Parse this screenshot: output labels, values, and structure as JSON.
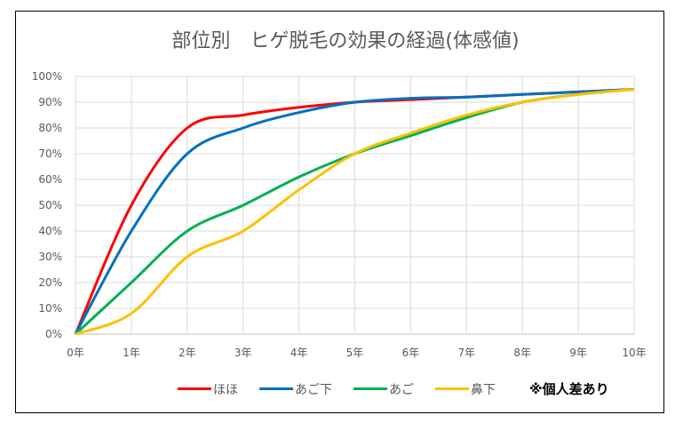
{
  "chart_data": {
    "type": "line",
    "title": "部位別　ヒゲ脱毛の効果の経過(体感値)",
    "x": [
      0,
      1,
      2,
      3,
      4,
      5,
      6,
      7,
      8,
      9,
      10
    ],
    "x_tick_labels": [
      "0年",
      "1年",
      "2年",
      "3年",
      "4年",
      "5年",
      "6年",
      "7年",
      "8年",
      "9年",
      "10年"
    ],
    "y_tick_labels": [
      "0%",
      "10%",
      "20%",
      "30%",
      "40%",
      "50%",
      "60%",
      "70%",
      "80%",
      "90%",
      "100%"
    ],
    "ylim": [
      0,
      100
    ],
    "xlim": [
      0,
      10
    ],
    "grid": true,
    "legend_position": "bottom",
    "series": [
      {
        "name": "ほほ",
        "color": "#ff0000",
        "values": [
          0,
          50,
          80,
          85,
          88,
          90,
          91,
          92,
          93,
          94,
          95
        ]
      },
      {
        "name": "あご下",
        "color": "#0070c0",
        "values": [
          0,
          40,
          70,
          80,
          86,
          90,
          91.5,
          92,
          93,
          94,
          95
        ]
      },
      {
        "name": "あご",
        "color": "#00b050",
        "values": [
          0,
          20,
          40,
          50,
          61,
          70,
          77,
          84,
          90,
          93,
          95
        ]
      },
      {
        "name": "鼻下",
        "color": "#ffc000",
        "values": [
          0,
          8,
          30,
          40,
          56,
          70,
          78,
          85,
          90,
          93,
          95
        ]
      }
    ],
    "annotation": "※個人差あり"
  }
}
